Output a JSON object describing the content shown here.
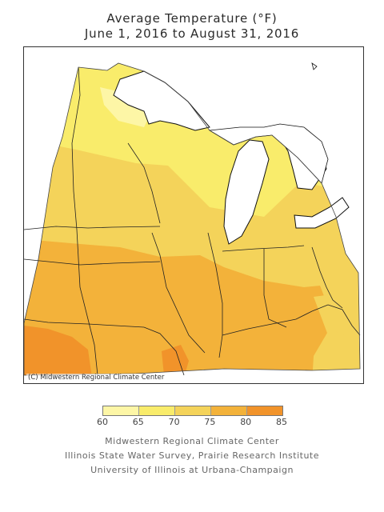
{
  "title": {
    "line1": "Average Temperature (°F)",
    "line2": "June 1, 2016 to August 31, 2016"
  },
  "map": {
    "credit": "(C) Midwestern Regional Climate Center"
  },
  "legend": {
    "bins": [
      {
        "from": 60,
        "to": 65,
        "color": "#fdf6a6"
      },
      {
        "from": 65,
        "to": 70,
        "color": "#f9ec6b"
      },
      {
        "from": 70,
        "to": 75,
        "color": "#f4d35a"
      },
      {
        "from": 75,
        "to": 80,
        "color": "#f3b23a"
      },
      {
        "from": 80,
        "to": 85,
        "color": "#f1932a"
      }
    ],
    "ticks": [
      "60",
      "65",
      "70",
      "75",
      "80",
      "85"
    ]
  },
  "footer": {
    "line1": "Midwestern Regional Climate Center",
    "line2": "Illinois State Water Survey, Prairie Research Institute",
    "line3": "University of Illinois at Urbana-Champaign"
  }
}
